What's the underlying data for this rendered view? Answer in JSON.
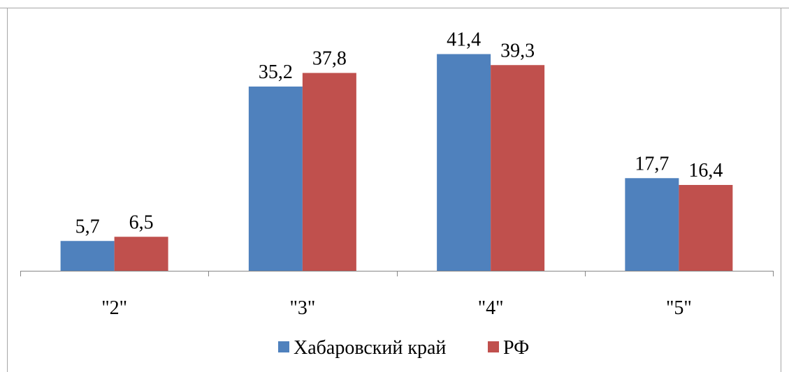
{
  "chart_data": {
    "type": "bar",
    "title": "",
    "xlabel": "",
    "ylabel": "",
    "categories": [
      "\"2\"",
      "\"3\"",
      "\"4\"",
      "\"5\""
    ],
    "series": [
      {
        "name": "Хабаровский край",
        "color": "#4f81bd",
        "values": [
          5.7,
          35.2,
          41.4,
          17.7
        ]
      },
      {
        "name": "РФ",
        "color": "#c0504d",
        "values": [
          6.5,
          37.8,
          39.3,
          16.4
        ]
      }
    ],
    "value_labels": [
      [
        "5,7",
        "35,2",
        "41,4",
        "17,7"
      ],
      [
        "6,5",
        "37,8",
        "39,3",
        "16,4"
      ]
    ],
    "ylim": [
      0,
      50
    ],
    "grid": false,
    "legend_position": "bottom"
  }
}
